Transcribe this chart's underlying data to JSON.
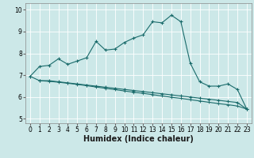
{
  "xlabel": "Humidex (Indice chaleur)",
  "bg_color": "#cce8e8",
  "line_color": "#1a6b6b",
  "grid_color": "#b8d8d8",
  "xlim": [
    -0.5,
    23.5
  ],
  "ylim": [
    4.8,
    10.3
  ],
  "xtick_labels": [
    "0",
    "1",
    "2",
    "3",
    "4",
    "5",
    "6",
    "7",
    "8",
    "9",
    "10",
    "11",
    "12",
    "13",
    "14",
    "15",
    "16",
    "17",
    "18",
    "19",
    "20",
    "21",
    "22",
    "23"
  ],
  "yticks": [
    5,
    6,
    7,
    8,
    9,
    10
  ],
  "curve1_x": [
    0,
    1,
    2,
    3,
    4,
    5,
    6,
    7,
    8,
    9,
    10,
    11,
    12,
    13,
    14,
    15,
    16,
    17,
    18,
    19,
    20,
    21,
    22,
    23
  ],
  "curve1_y": [
    6.95,
    7.4,
    7.45,
    7.75,
    7.5,
    7.65,
    7.8,
    8.55,
    8.15,
    8.2,
    8.5,
    8.7,
    8.85,
    9.45,
    9.4,
    9.75,
    9.45,
    7.55,
    6.7,
    6.5,
    6.5,
    6.6,
    6.35,
    5.45
  ],
  "curve2_x": [
    1,
    2,
    3,
    4,
    5,
    6,
    7,
    8,
    9,
    10,
    11,
    12,
    13,
    14,
    15,
    16,
    17,
    18,
    19,
    20,
    21,
    22,
    23
  ],
  "curve2_y": [
    6.75,
    6.75,
    6.7,
    6.65,
    6.6,
    6.55,
    6.5,
    6.45,
    6.4,
    6.35,
    6.3,
    6.25,
    6.2,
    6.15,
    6.1,
    6.05,
    6.0,
    5.95,
    5.9,
    5.85,
    5.8,
    5.75,
    5.45
  ],
  "curve3_x": [
    0,
    1,
    2,
    3,
    4,
    5,
    6,
    7,
    8,
    9,
    10,
    11,
    12,
    13,
    14,
    15,
    16,
    17,
    18,
    19,
    20,
    21,
    22,
    23
  ],
  "curve3_y": [
    6.95,
    6.75,
    6.72,
    6.68,
    6.63,
    6.58,
    6.52,
    6.46,
    6.4,
    6.34,
    6.28,
    6.22,
    6.17,
    6.11,
    6.05,
    5.99,
    5.94,
    5.88,
    5.82,
    5.76,
    5.7,
    5.65,
    5.59,
    5.45
  ],
  "tick_fontsize": 5.5,
  "label_fontsize": 7
}
